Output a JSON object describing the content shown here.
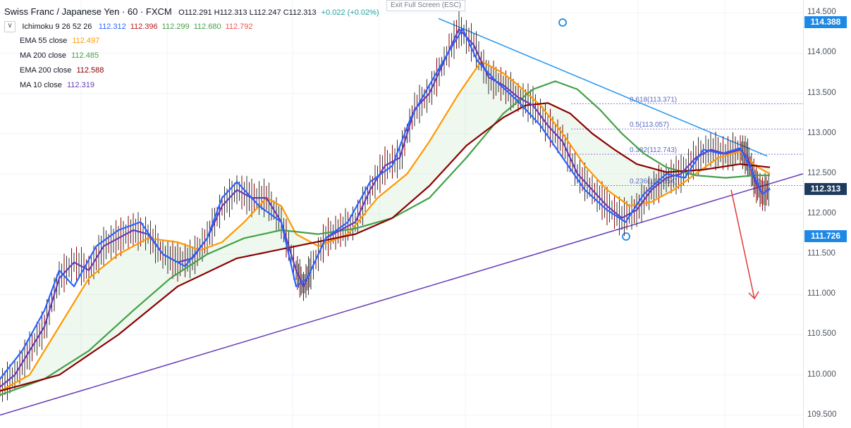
{
  "header": {
    "symbol_title": "Swiss Franc / Japanese Yen · 60 · FXCM",
    "ohlc": [
      {
        "label": "O",
        "value": "112.291"
      },
      {
        "label": "H",
        "value": "112.313"
      },
      {
        "label": "L",
        "value": "112.247"
      },
      {
        "label": "C",
        "value": "112.313"
      }
    ],
    "change": "+0.022 (+0.02%)",
    "exit_fullscreen": "Exit Full Screen (ESC)"
  },
  "indicators": {
    "ichimoku": {
      "label": "Ichimoku 9 26 52 26",
      "values": [
        {
          "v": "112.312",
          "color": "#2962ff"
        },
        {
          "v": "112.396",
          "color": "#b71c1c"
        },
        {
          "v": "112.299",
          "color": "#43a047"
        },
        {
          "v": "112.680",
          "color": "#43a047"
        },
        {
          "v": "112.792",
          "color": "#ef5350"
        }
      ]
    },
    "ema55": {
      "label": "EMA 55 close",
      "value": "112.497",
      "color": "#ff9800"
    },
    "ma200": {
      "label": "MA 200 close",
      "value": "112.485",
      "color": "#43a047"
    },
    "ema200": {
      "label": "EMA 200 close",
      "value": "112.588",
      "color": "#8b0000"
    },
    "ma10": {
      "label": "MA 10 close",
      "value": "112.319",
      "color": "#673ab7"
    }
  },
  "price_tags": [
    {
      "value": "114.388",
      "color": "#1e88e5"
    },
    {
      "value": "112.313",
      "color": "#1e3a5f"
    },
    {
      "value": "111.726",
      "color": "#1e88e5"
    }
  ],
  "fib_labels": [
    {
      "text": "0.618(113.371)",
      "level": 113.371
    },
    {
      "text": "0.5(113.057)",
      "level": 113.057
    },
    {
      "text": "0.382(112.743)",
      "level": 112.743
    },
    {
      "text": "0.236(112.354)",
      "level": 112.354
    }
  ],
  "chart_data": {
    "type": "line",
    "title": "Swiss Franc / Japanese Yen · 60 · FXCM",
    "y_ticks": [
      "114.500",
      "114.000",
      "113.500",
      "113.000",
      "112.500",
      "112.000",
      "111.500",
      "111.000",
      "110.500",
      "110.000",
      "109.500"
    ],
    "ylim": [
      109.34,
      114.66
    ],
    "x_range": [
      0,
      1000
    ],
    "grid": true,
    "series": [
      {
        "color": "#ff9800",
        "points": [
          [
            0,
            109.8
          ],
          [
            40,
            110.0
          ],
          [
            80,
            110.6
          ],
          [
            120,
            111.2
          ],
          [
            160,
            111.5
          ],
          [
            200,
            111.7
          ],
          [
            240,
            111.65
          ],
          [
            270,
            111.55
          ],
          [
            300,
            111.65
          ],
          [
            330,
            111.9
          ],
          [
            360,
            112.2
          ],
          [
            380,
            112.1
          ],
          [
            400,
            111.75
          ],
          [
            430,
            111.6
          ],
          [
            470,
            111.75
          ],
          [
            510,
            112.2
          ],
          [
            550,
            112.5
          ],
          [
            580,
            112.9
          ],
          [
            620,
            113.5
          ],
          [
            650,
            113.9
          ],
          [
            680,
            113.75
          ],
          [
            700,
            113.6
          ],
          [
            730,
            113.35
          ],
          [
            760,
            113.0
          ],
          [
            790,
            112.6
          ],
          [
            820,
            112.3
          ],
          [
            850,
            112.1
          ],
          [
            880,
            112.15
          ],
          [
            910,
            112.3
          ],
          [
            940,
            112.5
          ],
          [
            970,
            112.7
          ],
          [
            1000,
            112.78
          ],
          [
            1020,
            112.6
          ],
          [
            1040,
            112.5
          ]
        ]
      },
      {
        "color": "#43a047",
        "points": [
          [
            0,
            109.75
          ],
          [
            60,
            109.95
          ],
          [
            120,
            110.3
          ],
          [
            180,
            110.8
          ],
          [
            230,
            111.2
          ],
          [
            280,
            111.5
          ],
          [
            330,
            111.7
          ],
          [
            380,
            111.8
          ],
          [
            430,
            111.75
          ],
          [
            480,
            111.82
          ],
          [
            530,
            111.95
          ],
          [
            580,
            112.2
          ],
          [
            630,
            112.7
          ],
          [
            680,
            113.25
          ],
          [
            720,
            113.55
          ],
          [
            750,
            113.65
          ],
          [
            780,
            113.55
          ],
          [
            810,
            113.3
          ],
          [
            840,
            113.0
          ],
          [
            870,
            112.75
          ],
          [
            900,
            112.58
          ],
          [
            940,
            112.48
          ],
          [
            980,
            112.45
          ],
          [
            1020,
            112.48
          ],
          [
            1040,
            112.48
          ]
        ]
      },
      {
        "color": "#8b0000",
        "points": [
          [
            0,
            109.8
          ],
          [
            80,
            110.0
          ],
          [
            160,
            110.5
          ],
          [
            240,
            111.1
          ],
          [
            320,
            111.45
          ],
          [
            400,
            111.6
          ],
          [
            480,
            111.75
          ],
          [
            530,
            111.95
          ],
          [
            580,
            112.35
          ],
          [
            630,
            112.85
          ],
          [
            680,
            113.2
          ],
          [
            710,
            113.35
          ],
          [
            740,
            113.38
          ],
          [
            770,
            113.25
          ],
          [
            800,
            113.0
          ],
          [
            830,
            112.8
          ],
          [
            860,
            112.62
          ],
          [
            900,
            112.52
          ],
          [
            950,
            112.55
          ],
          [
            1000,
            112.62
          ],
          [
            1040,
            112.58
          ]
        ]
      },
      {
        "color": "#673ab7",
        "points": [
          [
            0,
            109.85
          ],
          [
            20,
            110.0
          ],
          [
            40,
            110.3
          ],
          [
            60,
            110.6
          ],
          [
            80,
            111.2
          ],
          [
            100,
            111.4
          ],
          [
            120,
            111.3
          ],
          [
            140,
            111.6
          ],
          [
            160,
            111.7
          ],
          [
            180,
            111.8
          ],
          [
            200,
            111.75
          ],
          [
            220,
            111.5
          ],
          [
            240,
            111.4
          ],
          [
            260,
            111.45
          ],
          [
            280,
            111.7
          ],
          [
            300,
            112.1
          ],
          [
            320,
            112.3
          ],
          [
            340,
            112.2
          ],
          [
            360,
            112.2
          ],
          [
            380,
            111.9
          ],
          [
            400,
            111.3
          ],
          [
            410,
            111.1
          ],
          [
            420,
            111.3
          ],
          [
            440,
            111.7
          ],
          [
            460,
            111.8
          ],
          [
            480,
            111.9
          ],
          [
            500,
            112.3
          ],
          [
            520,
            112.6
          ],
          [
            540,
            112.7
          ],
          [
            560,
            113.3
          ],
          [
            580,
            113.5
          ],
          [
            600,
            113.9
          ],
          [
            620,
            114.3
          ],
          [
            640,
            114.1
          ],
          [
            660,
            113.7
          ],
          [
            680,
            113.6
          ],
          [
            700,
            113.45
          ],
          [
            720,
            113.35
          ],
          [
            740,
            113.1
          ],
          [
            760,
            112.9
          ],
          [
            780,
            112.5
          ],
          [
            800,
            112.3
          ],
          [
            820,
            112.1
          ],
          [
            840,
            111.95
          ],
          [
            860,
            112.05
          ],
          [
            880,
            112.3
          ],
          [
            900,
            112.45
          ],
          [
            920,
            112.5
          ],
          [
            940,
            112.7
          ],
          [
            960,
            112.8
          ],
          [
            980,
            112.75
          ],
          [
            1000,
            112.8
          ],
          [
            1010,
            112.7
          ],
          [
            1020,
            112.4
          ],
          [
            1030,
            112.25
          ],
          [
            1040,
            112.32
          ]
        ]
      },
      {
        "color": "#2962ff",
        "points": [
          [
            0,
            109.95
          ],
          [
            30,
            110.3
          ],
          [
            60,
            110.8
          ],
          [
            80,
            111.3
          ],
          [
            100,
            111.1
          ],
          [
            130,
            111.6
          ],
          [
            160,
            111.8
          ],
          [
            190,
            111.9
          ],
          [
            220,
            111.5
          ],
          [
            250,
            111.35
          ],
          [
            280,
            111.7
          ],
          [
            300,
            112.2
          ],
          [
            320,
            112.4
          ],
          [
            350,
            112.1
          ],
          [
            380,
            111.9
          ],
          [
            400,
            111.1
          ],
          [
            415,
            111.2
          ],
          [
            440,
            111.7
          ],
          [
            470,
            111.9
          ],
          [
            500,
            112.4
          ],
          [
            530,
            112.6
          ],
          [
            555,
            113.2
          ],
          [
            580,
            113.6
          ],
          [
            605,
            114.0
          ],
          [
            625,
            114.3
          ],
          [
            645,
            113.9
          ],
          [
            670,
            113.65
          ],
          [
            700,
            113.4
          ],
          [
            730,
            113.1
          ],
          [
            760,
            112.7
          ],
          [
            790,
            112.3
          ],
          [
            820,
            112.05
          ],
          [
            845,
            111.9
          ],
          [
            870,
            112.25
          ],
          [
            900,
            112.5
          ],
          [
            925,
            112.45
          ],
          [
            950,
            112.8
          ],
          [
            975,
            112.75
          ],
          [
            1000,
            112.82
          ],
          [
            1015,
            112.55
          ],
          [
            1030,
            112.25
          ],
          [
            1040,
            112.31
          ]
        ]
      }
    ]
  }
}
